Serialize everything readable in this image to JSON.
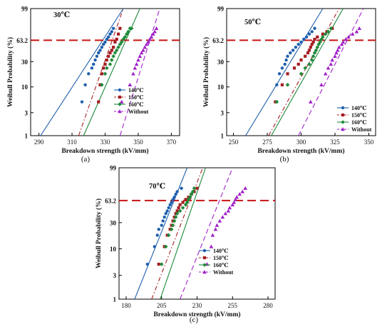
{
  "chart_data": [
    {
      "type": "scatter",
      "panel_label": "(a)",
      "temperature": "30℃",
      "xlabel": "Breakdown strength (kV/mm)",
      "ylabel": "Weibull  Probability  (%)",
      "xlim": [
        285,
        375
      ],
      "xticks": [
        "290",
        "310",
        "330",
        "350",
        "370"
      ],
      "yticks": [
        "1",
        "3",
        "10",
        "30",
        "63.2",
        "99"
      ],
      "reference_level": 63.2,
      "series": [
        {
          "name": "140℃",
          "color": "#1f5fad",
          "marker": "circle",
          "line": "solid",
          "x": [
            316,
            318,
            320,
            322,
            323,
            324,
            325,
            326,
            327,
            328,
            329,
            330,
            331,
            332,
            333,
            334,
            335
          ],
          "y": [
            5,
            11,
            18,
            23,
            27,
            32,
            37,
            42,
            46,
            51,
            56,
            60,
            65,
            69,
            74,
            78,
            83
          ],
          "fit": [
            [
              291,
              1
            ],
            [
              341,
              99
            ]
          ]
        },
        {
          "name": "150℃",
          "color": "#a51e22",
          "marker": "square",
          "line": "dashdot",
          "x": [
            326,
            327,
            328,
            329,
            330,
            331,
            332,
            333,
            334,
            335,
            336,
            337,
            338,
            339
          ],
          "y": [
            5,
            11,
            18,
            23,
            27,
            32,
            37,
            42,
            46,
            51,
            60,
            65,
            74,
            83
          ],
          "fit": [
            [
              314,
              1
            ],
            [
              341,
              99
            ]
          ]
        },
        {
          "name": "160℃",
          "color": "#1d8a3a",
          "marker": "diamond",
          "line": "solid",
          "x": [
            328,
            330,
            331,
            333,
            334,
            335,
            336,
            337,
            338,
            339,
            340,
            341,
            342,
            343,
            344,
            345,
            346
          ],
          "y": [
            11,
            18,
            23,
            27,
            32,
            37,
            42,
            46,
            51,
            56,
            60,
            65,
            69,
            74,
            78,
            83,
            83
          ],
          "fit": [
            [
              317,
              1
            ],
            [
              351,
              99
            ]
          ]
        },
        {
          "name": "Without",
          "color": "#a020c8",
          "marker": "triangle",
          "line": "dashed",
          "x": [
            340,
            345,
            347,
            348,
            349,
            350,
            351,
            352,
            353,
            354,
            355,
            356,
            357,
            358,
            359,
            360,
            361
          ],
          "y": [
            5,
            11,
            18,
            23,
            27,
            32,
            37,
            42,
            46,
            51,
            56,
            60,
            65,
            69,
            74,
            78,
            83
          ],
          "fit": [
            [
              339,
              1
            ],
            [
              363,
              99
            ]
          ]
        }
      ]
    },
    {
      "type": "scatter",
      "panel_label": "(b)",
      "temperature": "50℃",
      "xlabel": "Breakdown strength (kV/mm)",
      "ylabel": "Weibull  Probability  (%)",
      "xlim": [
        245,
        355
      ],
      "xticks": [
        "250",
        "275",
        "300",
        "325",
        "350"
      ],
      "yticks": [
        "1",
        "3",
        "10",
        "30",
        "63.2",
        "99"
      ],
      "reference_level": 63.2,
      "series": [
        {
          "name": "140℃",
          "color": "#1f5fad",
          "marker": "circle",
          "line": "solid",
          "x": [
            282,
            284,
            286,
            288,
            289,
            290,
            292,
            294,
            296,
            298,
            300,
            302,
            304,
            306,
            308,
            310
          ],
          "y": [
            11,
            18,
            23,
            27,
            32,
            37,
            42,
            46,
            51,
            56,
            60,
            65,
            69,
            74,
            78,
            83
          ],
          "fit": [
            [
              259,
              1
            ],
            [
              316,
              99
            ]
          ]
        },
        {
          "name": "150℃",
          "color": "#a51e22",
          "marker": "square",
          "line": "dashdot",
          "x": [
            281,
            286,
            290,
            295,
            298,
            300,
            303,
            305,
            306,
            307,
            308,
            309,
            310,
            312,
            316,
            319,
            323
          ],
          "y": [
            5,
            11,
            18,
            23,
            27,
            32,
            37,
            42,
            46,
            51,
            56,
            60,
            65,
            69,
            74,
            78,
            83
          ],
          "fit": [
            [
              276,
              1
            ],
            [
              328,
              99
            ]
          ]
        },
        {
          "name": "160℃",
          "color": "#1d8a3a",
          "marker": "diamond",
          "line": "solid",
          "x": [
            282,
            290,
            300,
            303,
            306,
            308,
            309,
            310,
            311,
            312,
            313,
            314,
            315,
            316,
            318,
            320,
            322
          ],
          "y": [
            5,
            11,
            18,
            23,
            27,
            32,
            37,
            42,
            46,
            51,
            56,
            60,
            65,
            69,
            74,
            78,
            83
          ],
          "fit": [
            [
              278,
              1
            ],
            [
              331,
              99
            ]
          ]
        },
        {
          "name": "Without",
          "color": "#a020c8",
          "marker": "triangle",
          "line": "dashed",
          "x": [
            307,
            315,
            318,
            320,
            322,
            323,
            325,
            326,
            327,
            328,
            330,
            331,
            333,
            335,
            338,
            341,
            343
          ],
          "y": [
            5,
            11,
            18,
            23,
            27,
            32,
            37,
            42,
            46,
            51,
            56,
            60,
            65,
            69,
            74,
            78,
            83
          ],
          "fit": [
            [
              298,
              1
            ],
            [
              346,
              99
            ]
          ]
        }
      ]
    },
    {
      "type": "scatter",
      "panel_label": "(c)",
      "temperature": "70℃",
      "xlabel": "Breakdown strength (kV/mm)",
      "ylabel": "Weibull  Probability  (%)",
      "xlim": [
        175,
        285
      ],
      "xticks": [
        "180",
        "205",
        "230",
        "255",
        "280"
      ],
      "yticks": [
        "1",
        "3",
        "10",
        "30",
        "63.2",
        "99"
      ],
      "reference_level": 63.2,
      "series": [
        {
          "name": "140℃",
          "color": "#1f5fad",
          "marker": "circle",
          "line": "solid",
          "x": [
            195,
            200,
            202,
            203,
            205,
            206,
            207,
            208,
            209,
            210,
            211,
            212,
            213,
            214,
            215,
            216,
            219
          ],
          "y": [
            5,
            11,
            18,
            23,
            27,
            32,
            37,
            42,
            46,
            51,
            56,
            60,
            65,
            69,
            74,
            78,
            83
          ],
          "fit": [
            [
              186,
              1
            ],
            [
              223,
              99
            ]
          ]
        },
        {
          "name": "150℃",
          "color": "#a51e22",
          "marker": "square",
          "line": "dashdot",
          "x": [
            203,
            207,
            209,
            211,
            212,
            213,
            214,
            215,
            216,
            217,
            218,
            220,
            222,
            224,
            226,
            228,
            230
          ],
          "y": [
            5,
            11,
            18,
            23,
            27,
            32,
            37,
            42,
            46,
            51,
            56,
            60,
            65,
            69,
            74,
            78,
            83
          ],
          "fit": [
            [
              198,
              1
            ],
            [
              234,
              99
            ]
          ]
        },
        {
          "name": "160℃",
          "color": "#1d8a3a",
          "marker": "diamond",
          "line": "solid",
          "x": [
            205,
            208,
            210,
            212,
            213,
            214,
            215,
            216,
            218,
            220,
            222,
            223,
            224,
            225,
            226,
            227,
            228
          ],
          "y": [
            5,
            11,
            18,
            23,
            27,
            32,
            37,
            42,
            46,
            51,
            56,
            60,
            65,
            69,
            74,
            78,
            83
          ],
          "fit": [
            [
              204,
              1
            ],
            [
              236,
              99
            ]
          ]
        },
        {
          "name": "Without",
          "color": "#a020c8",
          "marker": "triangle",
          "line": "dashed",
          "x": [
            237,
            240,
            241,
            243,
            244,
            246,
            248,
            250,
            252,
            253,
            255,
            256,
            257,
            258,
            260,
            262,
            264
          ],
          "y": [
            5,
            11,
            18,
            23,
            27,
            32,
            37,
            42,
            46,
            51,
            56,
            60,
            65,
            69,
            74,
            78,
            83
          ],
          "fit": [
            [
              218,
              1
            ],
            [
              255,
              99
            ]
          ]
        }
      ]
    }
  ]
}
